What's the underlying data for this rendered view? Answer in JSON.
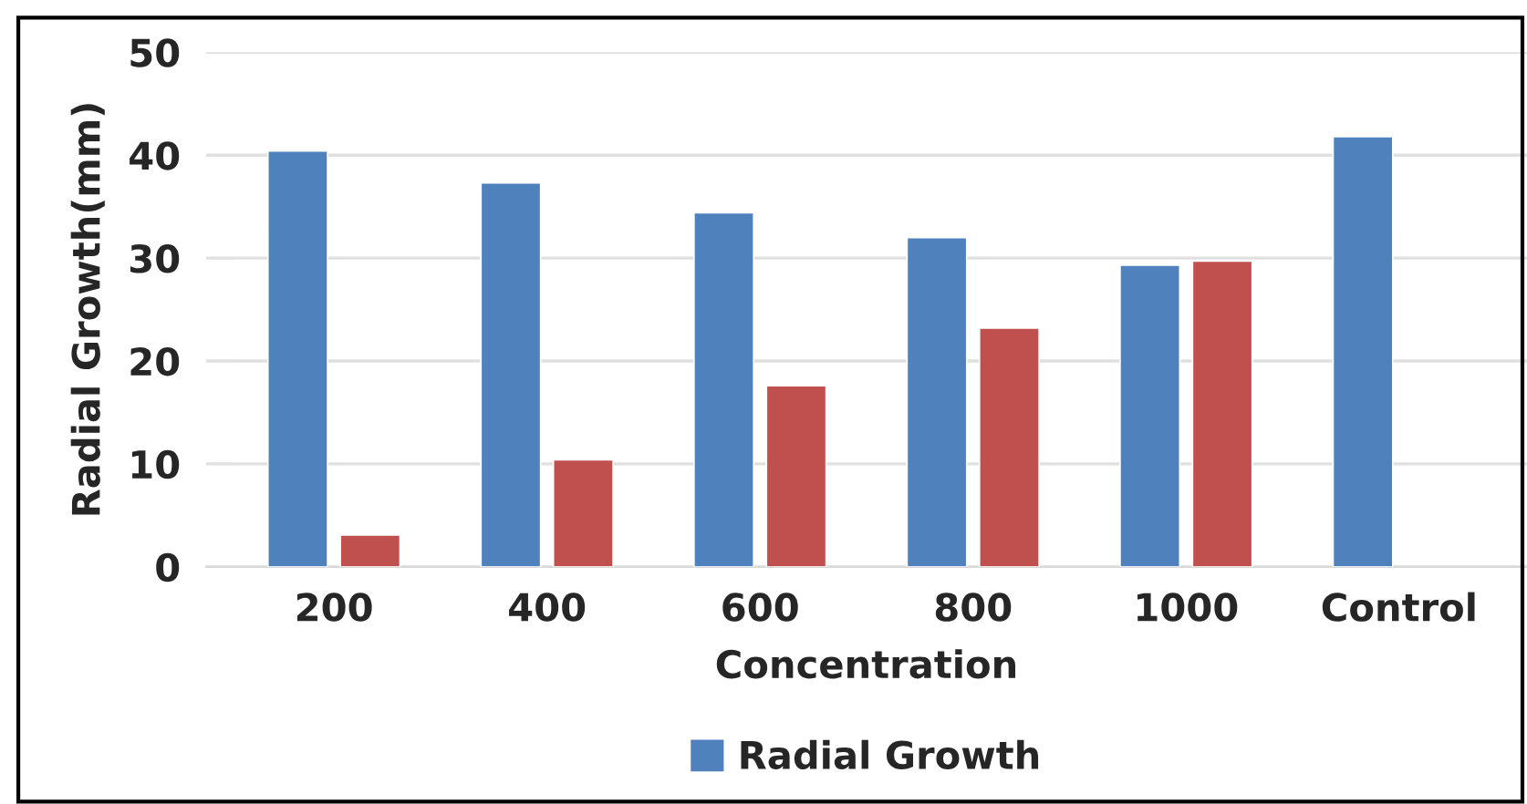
{
  "chart_data": {
    "type": "bar",
    "xlabel": "Concentration",
    "ylabel": "Radial Growth(mm)",
    "categories": [
      "200",
      "400",
      "600",
      "800",
      "1000",
      "Control"
    ],
    "series": [
      {
        "name": "Radial Growth",
        "color": "#4f81bd",
        "values": [
          40.4,
          37.3,
          34.4,
          32.0,
          29.3,
          41.8
        ]
      },
      {
        "color": "#c0504d",
        "values": [
          3.1,
          10.4,
          17.6,
          23.2,
          29.7,
          null
        ]
      }
    ],
    "ylim": [
      0,
      50
    ],
    "yticks": [
      0,
      10,
      20,
      30,
      40,
      50
    ],
    "grid": "y",
    "legend": "bottom"
  }
}
